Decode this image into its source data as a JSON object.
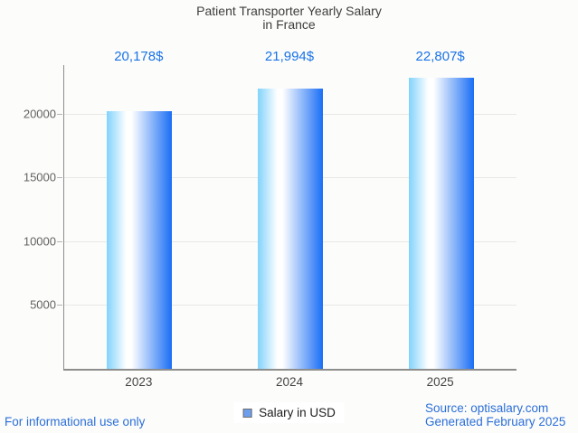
{
  "title": {
    "line1": "Patient Transporter Yearly Salary",
    "line2": "in France"
  },
  "chart_data": {
    "type": "bar",
    "categories": [
      "2023",
      "2024",
      "2025"
    ],
    "values": [
      20178,
      21994,
      22807
    ],
    "value_labels": [
      "20,178$",
      "21,994$",
      "22,807$"
    ],
    "series_name": "Salary in USD",
    "title": "Patient Transporter Yearly Salary in France",
    "xlabel": "",
    "ylabel": "",
    "ylim": [
      0,
      23800
    ],
    "yticks": [
      5000,
      10000,
      15000,
      20000
    ],
    "grid": "horizontal",
    "legend_position": "bottom-center"
  },
  "legend": {
    "label": "Salary in USD",
    "swatch_color": "#6d9eeb",
    "swatch_border": "#6e6e6e"
  },
  "footer": {
    "left": "For informational use only",
    "source": "Source: optisalary.com",
    "generated": "Generated February 2025"
  },
  "colors": {
    "background": "#fcfcfa",
    "title_text": "#3e3e3e",
    "value_text": "#1a73e8",
    "footer_text": "#2b6fd9",
    "ytick_text": "#636363",
    "xtick_text": "#454545",
    "legend_text": "#1c1c1c",
    "axis_line": "#8d8d8d",
    "tick_mark": "#b5b5b5",
    "gridline": "#e8e8e5",
    "bar_gradient_left": "#82d3fc",
    "bar_gradient_mid": "#ffffff",
    "bar_gradient_right": "#1a6ef5"
  }
}
